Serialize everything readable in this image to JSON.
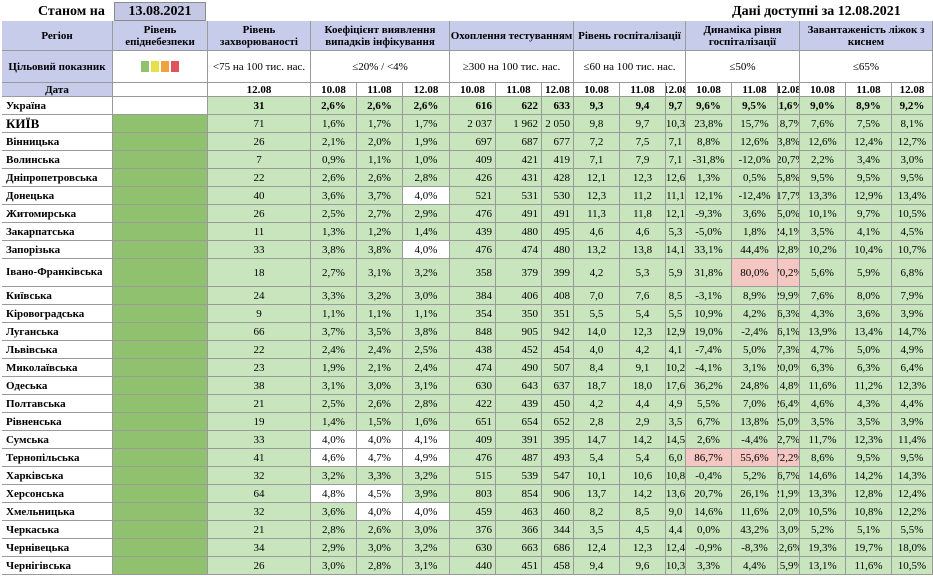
{
  "header": {
    "as_of_label": "Станом на",
    "as_of_date": "13.08.2021",
    "data_available": "Дані доступні за  12.08.2021"
  },
  "columns": {
    "region": "Регіон",
    "epidemic_level": "Рівень епіднебезпеки",
    "morbidity": "Рівень захворюваності",
    "detection": "Коефіцієнт виявлення випадків інфікування",
    "testing": "Охоплення тестуванням",
    "hospitalization": "Рівень госпіталізації",
    "hosp_dynamics": "Динаміка рівня госпіталізації",
    "oxygen_load": "Завантаженість ліжок з киснем"
  },
  "target": {
    "label": "Цільовий показник",
    "morbidity": "<75 на 100 тис. нас.",
    "detection": "≤20% / <4%",
    "testing": "≥300 на 100 тис. нас.",
    "hospitalization": "≤60 на 100 тис. нас.",
    "hosp_dynamics": "≤50%",
    "oxygen_load": "≤65%"
  },
  "date_row": {
    "label": "Дата",
    "morbidity_date": "12.08",
    "dates": [
      "10.08",
      "11.08",
      "12.08"
    ]
  },
  "legend_colors": [
    "#8fc16e",
    "#e8e04a",
    "#f0a23c",
    "#e0535b"
  ],
  "level_colors": {
    "green": "#8fc16e",
    "light_green": "#c8e5bd",
    "pink": "#f4c7c3",
    "lavender": "#c7cceb"
  },
  "rows": [
    {
      "region": "Україна",
      "summary": true,
      "morbidity": "31",
      "det": [
        "2,6%",
        "2,6%",
        "2,6%"
      ],
      "test": [
        "616",
        "622",
        "633"
      ],
      "hosp": [
        "9,3",
        "9,4",
        "9,7"
      ],
      "dyn": [
        "9,6%",
        "9,5%",
        "11,6%"
      ],
      "oxy": [
        "9,0%",
        "8,9%",
        "9,2%"
      ]
    },
    {
      "region": "КИЇВ",
      "big": true,
      "morbidity": "71",
      "det": [
        "1,6%",
        "1,7%",
        "1,7%"
      ],
      "test": [
        "2 037",
        "1 962",
        "2 050"
      ],
      "hosp": [
        "9,8",
        "9,7",
        "10,3"
      ],
      "dyn": [
        "23,8%",
        "15,7%",
        "18,7%"
      ],
      "oxy": [
        "7,6%",
        "7,5%",
        "8,1%"
      ]
    },
    {
      "region": "Вінницька",
      "morbidity": "26",
      "det": [
        "2,1%",
        "2,0%",
        "1,9%"
      ],
      "test": [
        "697",
        "687",
        "677"
      ],
      "hosp": [
        "7,2",
        "7,5",
        "7,1"
      ],
      "dyn": [
        "8,8%",
        "12,6%",
        "3,8%"
      ],
      "oxy": [
        "12,6%",
        "12,4%",
        "12,7%"
      ]
    },
    {
      "region": "Волинська",
      "morbidity": "7",
      "det": [
        "0,9%",
        "1,1%",
        "1,0%"
      ],
      "test": [
        "409",
        "421",
        "419"
      ],
      "hosp": [
        "7,1",
        "7,9",
        "7,1"
      ],
      "dyn": [
        "-31,8%",
        "-12,0%",
        "-20,7%"
      ],
      "oxy": [
        "2,2%",
        "3,4%",
        "3,0%"
      ]
    },
    {
      "region": "Дніпропетровська",
      "morbidity": "22",
      "det": [
        "2,6%",
        "2,6%",
        "2,8%"
      ],
      "test": [
        "426",
        "431",
        "428"
      ],
      "hosp": [
        "12,1",
        "12,3",
        "12,6"
      ],
      "dyn": [
        "1,3%",
        "0,5%",
        "5,8%"
      ],
      "oxy": [
        "9,5%",
        "9,5%",
        "9,5%"
      ]
    },
    {
      "region": "Донецька",
      "morbidity": "40",
      "det": [
        "3,6%",
        "3,7%",
        "4,0%"
      ],
      "test": [
        "521",
        "531",
        "530"
      ],
      "hosp": [
        "12,3",
        "11,2",
        "11,1"
      ],
      "dyn": [
        "12,1%",
        "-12,4%",
        "-17,7%"
      ],
      "oxy": [
        "13,3%",
        "12,9%",
        "13,4%"
      ]
    },
    {
      "region": "Житомирська",
      "morbidity": "26",
      "det": [
        "2,5%",
        "2,7%",
        "2,9%"
      ],
      "test": [
        "476",
        "491",
        "491"
      ],
      "hosp": [
        "11,3",
        "11,8",
        "12,1"
      ],
      "dyn": [
        "-9,3%",
        "3,6%",
        "5,0%"
      ],
      "oxy": [
        "10,1%",
        "9,7%",
        "10,5%"
      ]
    },
    {
      "region": "Закарпатська",
      "morbidity": "11",
      "det": [
        "1,3%",
        "1,2%",
        "1,4%"
      ],
      "test": [
        "439",
        "480",
        "495"
      ],
      "hosp": [
        "4,6",
        "4,6",
        "5,3"
      ],
      "dyn": [
        "-5,0%",
        "1,8%",
        "24,1%"
      ],
      "oxy": [
        "3,5%",
        "4,1%",
        "4,5%"
      ]
    },
    {
      "region": "Запорізька",
      "morbidity": "33",
      "det": [
        "3,8%",
        "3,8%",
        "4,0%"
      ],
      "test": [
        "476",
        "474",
        "480"
      ],
      "hosp": [
        "13,2",
        "13,8",
        "14,1"
      ],
      "dyn": [
        "33,1%",
        "44,4%",
        "42,8%"
      ],
      "oxy": [
        "10,2%",
        "10,4%",
        "10,7%"
      ]
    },
    {
      "region": "Івано-Франківська",
      "tall": true,
      "morbidity": "18",
      "det": [
        "2,7%",
        "3,1%",
        "3,2%"
      ],
      "test": [
        "358",
        "379",
        "399"
      ],
      "hosp": [
        "4,2",
        "5,3",
        "5,9"
      ],
      "dyn": [
        "31,8%",
        "80,0%",
        "70,2%"
      ],
      "oxy": [
        "5,6%",
        "5,9%",
        "6,8%"
      ]
    },
    {
      "region": "Київська",
      "morbidity": "24",
      "det": [
        "3,3%",
        "3,2%",
        "3,0%"
      ],
      "test": [
        "384",
        "406",
        "408"
      ],
      "hosp": [
        "7,0",
        "7,6",
        "8,5"
      ],
      "dyn": [
        "-3,1%",
        "8,9%",
        "29,9%"
      ],
      "oxy": [
        "7,6%",
        "8,0%",
        "7,9%"
      ]
    },
    {
      "region": "Кіровоградська",
      "morbidity": "9",
      "det": [
        "1,1%",
        "1,1%",
        "1,1%"
      ],
      "test": [
        "354",
        "350",
        "351"
      ],
      "hosp": [
        "5,5",
        "5,4",
        "5,5"
      ],
      "dyn": [
        "10,9%",
        "4,2%",
        "6,3%"
      ],
      "oxy": [
        "4,3%",
        "3,6%",
        "3,9%"
      ]
    },
    {
      "region": "Луганська",
      "morbidity": "66",
      "det": [
        "3,7%",
        "3,5%",
        "3,8%"
      ],
      "test": [
        "848",
        "905",
        "942"
      ],
      "hosp": [
        "14,0",
        "12,3",
        "12,9"
      ],
      "dyn": [
        "19,0%",
        "-2,4%",
        "6,1%"
      ],
      "oxy": [
        "13,9%",
        "13,4%",
        "14,7%"
      ]
    },
    {
      "region": "Львівська",
      "morbidity": "22",
      "det": [
        "2,4%",
        "2,4%",
        "2,5%"
      ],
      "test": [
        "438",
        "452",
        "454"
      ],
      "hosp": [
        "4,0",
        "4,2",
        "4,1"
      ],
      "dyn": [
        "-7,4%",
        "5,0%",
        "7,3%"
      ],
      "oxy": [
        "4,7%",
        "5,0%",
        "4,9%"
      ]
    },
    {
      "region": "Миколаївська",
      "morbidity": "23",
      "det": [
        "1,9%",
        "2,1%",
        "2,4%"
      ],
      "test": [
        "474",
        "490",
        "507"
      ],
      "hosp": [
        "8,4",
        "9,1",
        "10,2"
      ],
      "dyn": [
        "-4,1%",
        "3,1%",
        "20,0%"
      ],
      "oxy": [
        "6,3%",
        "6,3%",
        "6,4%"
      ]
    },
    {
      "region": "Одеська",
      "morbidity": "38",
      "det": [
        "3,1%",
        "3,0%",
        "3,1%"
      ],
      "test": [
        "630",
        "643",
        "637"
      ],
      "hosp": [
        "18,7",
        "18,0",
        "17,6"
      ],
      "dyn": [
        "36,2%",
        "24,8%",
        "14,8%"
      ],
      "oxy": [
        "11,6%",
        "11,2%",
        "12,3%"
      ]
    },
    {
      "region": "Полтавська",
      "morbidity": "21",
      "det": [
        "2,5%",
        "2,6%",
        "2,8%"
      ],
      "test": [
        "422",
        "439",
        "450"
      ],
      "hosp": [
        "4,2",
        "4,4",
        "4,9"
      ],
      "dyn": [
        "5,5%",
        "7,0%",
        "26,4%"
      ],
      "oxy": [
        "4,6%",
        "4,3%",
        "4,4%"
      ]
    },
    {
      "region": "Рівненська",
      "morbidity": "19",
      "det": [
        "1,4%",
        "1,5%",
        "1,6%"
      ],
      "test": [
        "651",
        "654",
        "652"
      ],
      "hosp": [
        "2,8",
        "2,9",
        "3,5"
      ],
      "dyn": [
        "6,7%",
        "13,8%",
        "25,0%"
      ],
      "oxy": [
        "3,5%",
        "3,5%",
        "3,9%"
      ]
    },
    {
      "region": "Сумська",
      "morbidity": "33",
      "det": [
        "4,0%",
        "4,0%",
        "4,1%"
      ],
      "test": [
        "409",
        "391",
        "395"
      ],
      "hosp": [
        "14,7",
        "14,2",
        "14,5"
      ],
      "dyn": [
        "2,6%",
        "-4,4%",
        "2,7%"
      ],
      "oxy": [
        "11,7%",
        "12,3%",
        "11,4%"
      ]
    },
    {
      "region": "Тернопільська",
      "morbidity": "41",
      "det": [
        "4,6%",
        "4,7%",
        "4,9%"
      ],
      "test": [
        "476",
        "487",
        "493"
      ],
      "hosp": [
        "5,4",
        "5,4",
        "6,0"
      ],
      "dyn": [
        "86,7%",
        "55,6%",
        "72,2%"
      ],
      "oxy": [
        "8,6%",
        "9,5%",
        "9,5%"
      ]
    },
    {
      "region": "Харківська",
      "morbidity": "32",
      "det": [
        "3,2%",
        "3,3%",
        "3,2%"
      ],
      "test": [
        "515",
        "539",
        "547"
      ],
      "hosp": [
        "10,1",
        "10,6",
        "10,8"
      ],
      "dyn": [
        "-0,4%",
        "5,2%",
        "6,7%"
      ],
      "oxy": [
        "14,6%",
        "14,2%",
        "14,3%"
      ]
    },
    {
      "region": "Херсонська",
      "morbidity": "64",
      "det": [
        "4,8%",
        "4,5%",
        "3,9%"
      ],
      "test": [
        "803",
        "854",
        "906"
      ],
      "hosp": [
        "13,7",
        "14,2",
        "13,6"
      ],
      "dyn": [
        "20,7%",
        "26,1%",
        "21,9%"
      ],
      "oxy": [
        "13,3%",
        "12,8%",
        "12,4%"
      ]
    },
    {
      "region": "Хмельницька",
      "morbidity": "32",
      "det": [
        "3,6%",
        "4,0%",
        "4,0%"
      ],
      "test": [
        "459",
        "463",
        "460"
      ],
      "hosp": [
        "8,2",
        "8,5",
        "9,0"
      ],
      "dyn": [
        "14,6%",
        "11,6%",
        "12,0%"
      ],
      "oxy": [
        "10,5%",
        "10,8%",
        "12,2%"
      ]
    },
    {
      "region": "Черкаська",
      "morbidity": "21",
      "det": [
        "2,8%",
        "2,6%",
        "3,0%"
      ],
      "test": [
        "376",
        "366",
        "344"
      ],
      "hosp": [
        "3,5",
        "4,5",
        "4,4"
      ],
      "dyn": [
        "0,0%",
        "43,2%",
        "13,0%"
      ],
      "oxy": [
        "5,2%",
        "5,1%",
        "5,5%"
      ]
    },
    {
      "region": "Чернівецька",
      "morbidity": "34",
      "det": [
        "2,9%",
        "3,0%",
        "3,2%"
      ],
      "test": [
        "630",
        "663",
        "686"
      ],
      "hosp": [
        "12,4",
        "12,3",
        "12,4"
      ],
      "dyn": [
        "-0,9%",
        "-8,3%",
        "-2,6%"
      ],
      "oxy": [
        "19,3%",
        "19,7%",
        "18,0%"
      ]
    },
    {
      "region": "Чернігівська",
      "morbidity": "26",
      "det": [
        "3,0%",
        "2,8%",
        "3,1%"
      ],
      "test": [
        "440",
        "451",
        "458"
      ],
      "hosp": [
        "9,4",
        "9,6",
        "10,3"
      ],
      "dyn": [
        "3,3%",
        "4,4%",
        "15,9%"
      ],
      "oxy": [
        "13,1%",
        "11,6%",
        "10,5%"
      ]
    }
  ]
}
